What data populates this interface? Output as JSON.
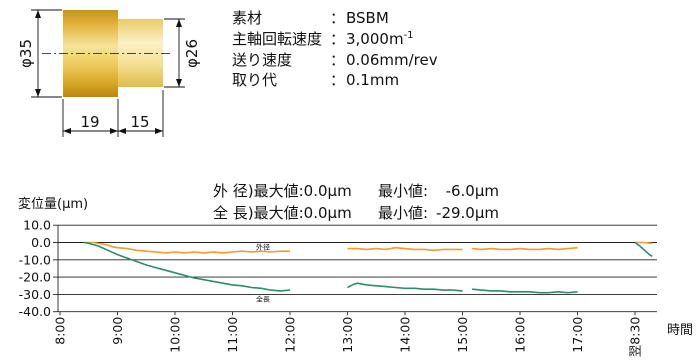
{
  "part": {
    "dims": {
      "dia_large": "φ35",
      "dia_small": "φ26",
      "len_large": "19",
      "len_small": "15"
    }
  },
  "specs": {
    "sep": "：",
    "rows": [
      {
        "label": "素材",
        "value": "BSBM"
      },
      {
        "label": "主軸回転速度",
        "value": "3,000m",
        "sup": "-1"
      },
      {
        "label": "送り速度",
        "value": "0.06mm/rev"
      },
      {
        "label": "取り代",
        "value": "0.1mm"
      }
    ]
  },
  "chart_data": {
    "type": "line",
    "ylabel": "変位量(μm)",
    "xlabel": "時間",
    "ylim": [
      -40,
      10
    ],
    "yticks": [
      "10.0",
      "0.0",
      "-10.0",
      "-20.0",
      "-30.0",
      "-40.0"
    ],
    "xticks": [
      "8:00",
      "9:00",
      "10:00",
      "11:00",
      "12:00",
      "13:00",
      "14:00",
      "15:00",
      "16:00",
      "17:00",
      "翌8:30"
    ],
    "grid": true,
    "stats": [
      {
        "item": "外 径)",
        "max": "最大値:0.0μm",
        "min_label": "最小値:",
        "min": "-6.0μm"
      },
      {
        "item": "全 長)",
        "max": "最大値:0.0μm",
        "min_label": "最小値:",
        "min": "-29.0μm"
      }
    ],
    "series": [
      {
        "name": "外径",
        "color": "#f29b30",
        "segments": [
          [
            [
              "8:25",
              0
            ],
            [
              "8:30",
              0
            ],
            [
              "8:35",
              0
            ],
            [
              "8:40",
              -0.5
            ],
            [
              "8:45",
              -1
            ],
            [
              "8:50",
              -1.5
            ],
            [
              "8:55",
              -2.5
            ],
            [
              "9:00",
              -3
            ],
            [
              "9:10",
              -3.5
            ],
            [
              "9:20",
              -4.5
            ],
            [
              "9:30",
              -5
            ],
            [
              "9:40",
              -5.5
            ],
            [
              "9:50",
              -6
            ],
            [
              "10:00",
              -5.5
            ],
            [
              "10:10",
              -6
            ],
            [
              "10:20",
              -5.5
            ],
            [
              "10:30",
              -6
            ],
            [
              "10:40",
              -5.5
            ],
            [
              "10:50",
              -6
            ],
            [
              "11:00",
              -5.5
            ],
            [
              "11:10",
              -5
            ],
            [
              "11:20",
              -5.5
            ],
            [
              "11:30",
              -5
            ],
            [
              "11:40",
              -5.5
            ],
            [
              "11:50",
              -5
            ],
            [
              "12:00",
              -5
            ]
          ],
          [
            [
              "13:00",
              -3.5
            ],
            [
              "13:10",
              -3.5
            ],
            [
              "13:20",
              -4
            ],
            [
              "13:30",
              -3.5
            ],
            [
              "13:40",
              -4
            ],
            [
              "13:50",
              -3
            ],
            [
              "14:00",
              -3.5
            ],
            [
              "14:10",
              -4
            ],
            [
              "14:20",
              -4
            ],
            [
              "14:30",
              -4.5
            ],
            [
              "14:40",
              -4
            ],
            [
              "14:50",
              -4
            ],
            [
              "15:00",
              -4
            ]
          ],
          [
            [
              "15:10",
              -3.5
            ],
            [
              "15:20",
              -4
            ],
            [
              "15:30",
              -3.5
            ],
            [
              "15:40",
              -4
            ],
            [
              "15:50",
              -4
            ],
            [
              "16:00",
              -3.5
            ],
            [
              "16:10",
              -4
            ],
            [
              "16:20",
              -4
            ],
            [
              "16:30",
              -3.5
            ],
            [
              "16:40",
              -4
            ],
            [
              "16:50",
              -3.5
            ],
            [
              "17:00",
              -3
            ]
          ],
          [
            [
              "翌8:30",
              0
            ],
            [
              "翌8:40",
              0
            ],
            [
              "翌8:48",
              -0.5
            ]
          ]
        ]
      },
      {
        "name": "全長",
        "color": "#2d8c6c",
        "segments": [
          [
            [
              "8:25",
              0
            ],
            [
              "8:30",
              -0.5
            ],
            [
              "8:40",
              -2
            ],
            [
              "8:50",
              -4.5
            ],
            [
              "9:00",
              -7
            ],
            [
              "9:10",
              -9
            ],
            [
              "9:20",
              -11
            ],
            [
              "9:30",
              -13
            ],
            [
              "9:40",
              -14.5
            ],
            [
              "9:50",
              -16
            ],
            [
              "10:00",
              -17.5
            ],
            [
              "10:10",
              -19
            ],
            [
              "10:20",
              -20.5
            ],
            [
              "10:30",
              -21.5
            ],
            [
              "10:40",
              -22.5
            ],
            [
              "10:50",
              -23.5
            ],
            [
              "11:00",
              -24.5
            ],
            [
              "11:10",
              -25
            ],
            [
              "11:20",
              -26
            ],
            [
              "11:30",
              -26.5
            ],
            [
              "11:40",
              -27.5
            ],
            [
              "11:50",
              -28
            ],
            [
              "12:00",
              -27.5
            ]
          ],
          [
            [
              "13:00",
              -26
            ],
            [
              "13:05",
              -24.5
            ],
            [
              "13:10",
              -23.5
            ],
            [
              "13:20",
              -24.5
            ],
            [
              "13:30",
              -25
            ],
            [
              "13:40",
              -25.5
            ],
            [
              "13:50",
              -26
            ],
            [
              "14:00",
              -26.5
            ],
            [
              "14:10",
              -26.5
            ],
            [
              "14:20",
              -27
            ],
            [
              "14:30",
              -27
            ],
            [
              "14:40",
              -27.5
            ],
            [
              "14:50",
              -27.5
            ],
            [
              "15:00",
              -28
            ]
          ],
          [
            [
              "15:10",
              -27
            ],
            [
              "15:20",
              -27.5
            ],
            [
              "15:30",
              -28
            ],
            [
              "15:40",
              -28
            ],
            [
              "15:50",
              -28.5
            ],
            [
              "16:00",
              -28.5
            ],
            [
              "16:10",
              -28.5
            ],
            [
              "16:20",
              -29
            ],
            [
              "16:30",
              -29
            ],
            [
              "16:40",
              -28.5
            ],
            [
              "16:50",
              -29
            ],
            [
              "17:00",
              -28.5
            ]
          ],
          [
            [
              "翌8:30",
              0
            ],
            [
              "翌8:35",
              -2
            ],
            [
              "翌8:40",
              -4.5
            ],
            [
              "翌8:45",
              -7
            ],
            [
              "翌8:48",
              -8
            ]
          ]
        ]
      }
    ]
  }
}
